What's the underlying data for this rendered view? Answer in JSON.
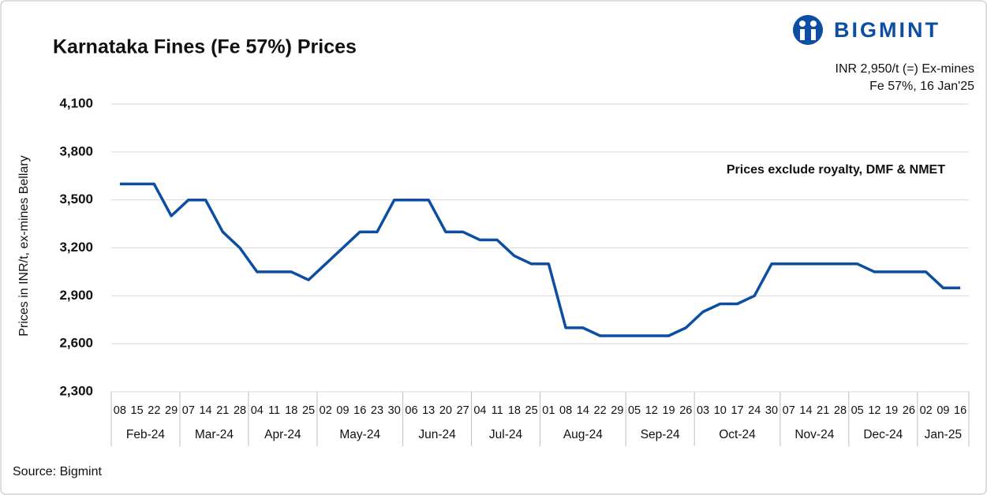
{
  "logo": "BIGMINT",
  "chart_data": {
    "type": "line",
    "title": "Karnataka Fines (Fe 57%) Prices",
    "annotations": [
      "INR 2,950/t (=) Ex-mines",
      "Fe 57%, 16 Jan'25"
    ],
    "note": "Prices exclude royalty, DMF & NMET",
    "source": "Source: Bigmint",
    "y_label": "Prices in INR/t, ex-mines Bellary",
    "categories": [
      "08",
      "15",
      "22",
      "29",
      "07",
      "14",
      "21",
      "28",
      "04",
      "11",
      "18",
      "25",
      "02",
      "09",
      "16",
      "23",
      "30",
      "06",
      "13",
      "20",
      "27",
      "04",
      "11",
      "18",
      "25",
      "01",
      "08",
      "14",
      "22",
      "29",
      "05",
      "12",
      "19",
      "26",
      "03",
      "10",
      "17",
      "24",
      "30",
      "07",
      "14",
      "21",
      "28",
      "05",
      "12",
      "19",
      "26",
      "02",
      "09",
      "16"
    ],
    "months": [
      "Feb-24",
      null,
      null,
      null,
      "Mar-24",
      null,
      null,
      null,
      "Apr-24",
      null,
      null,
      null,
      "May-24",
      null,
      null,
      null,
      null,
      "Jun-24",
      null,
      null,
      null,
      "Jul-24",
      null,
      null,
      null,
      "Aug-24",
      null,
      null,
      null,
      null,
      "Sep-24",
      null,
      null,
      null,
      "Oct-24",
      null,
      null,
      null,
      null,
      "Nov-24",
      null,
      null,
      null,
      "Dec-24",
      null,
      null,
      null,
      "Jan-25",
      null,
      null
    ],
    "values": [
      3600,
      3600,
      3600,
      3400,
      3500,
      3500,
      3300,
      3200,
      3050,
      3050,
      3050,
      3000,
      3100,
      3200,
      3300,
      3300,
      3500,
      3500,
      3500,
      3300,
      3300,
      3250,
      3250,
      3150,
      3100,
      3100,
      2700,
      2700,
      2650,
      2650,
      2650,
      2650,
      2650,
      2700,
      2800,
      2850,
      2850,
      2900,
      3100,
      3100,
      3100,
      3100,
      3100,
      3100,
      3050,
      3050,
      3050,
      3050,
      2950,
      2950
    ],
    "color": "#0b4ea2",
    "ylim": [
      2300,
      4100
    ],
    "yticks": [
      {
        "value": 2300,
        "label": "2,300"
      },
      {
        "value": 2600,
        "label": "2,600"
      },
      {
        "value": 2900,
        "label": "2,900"
      },
      {
        "value": 3200,
        "label": "3,200"
      },
      {
        "value": 3500,
        "label": "3,500"
      },
      {
        "value": 3800,
        "label": "3,800"
      },
      {
        "value": 4100,
        "label": "4,100"
      }
    ],
    "grid": true
  }
}
